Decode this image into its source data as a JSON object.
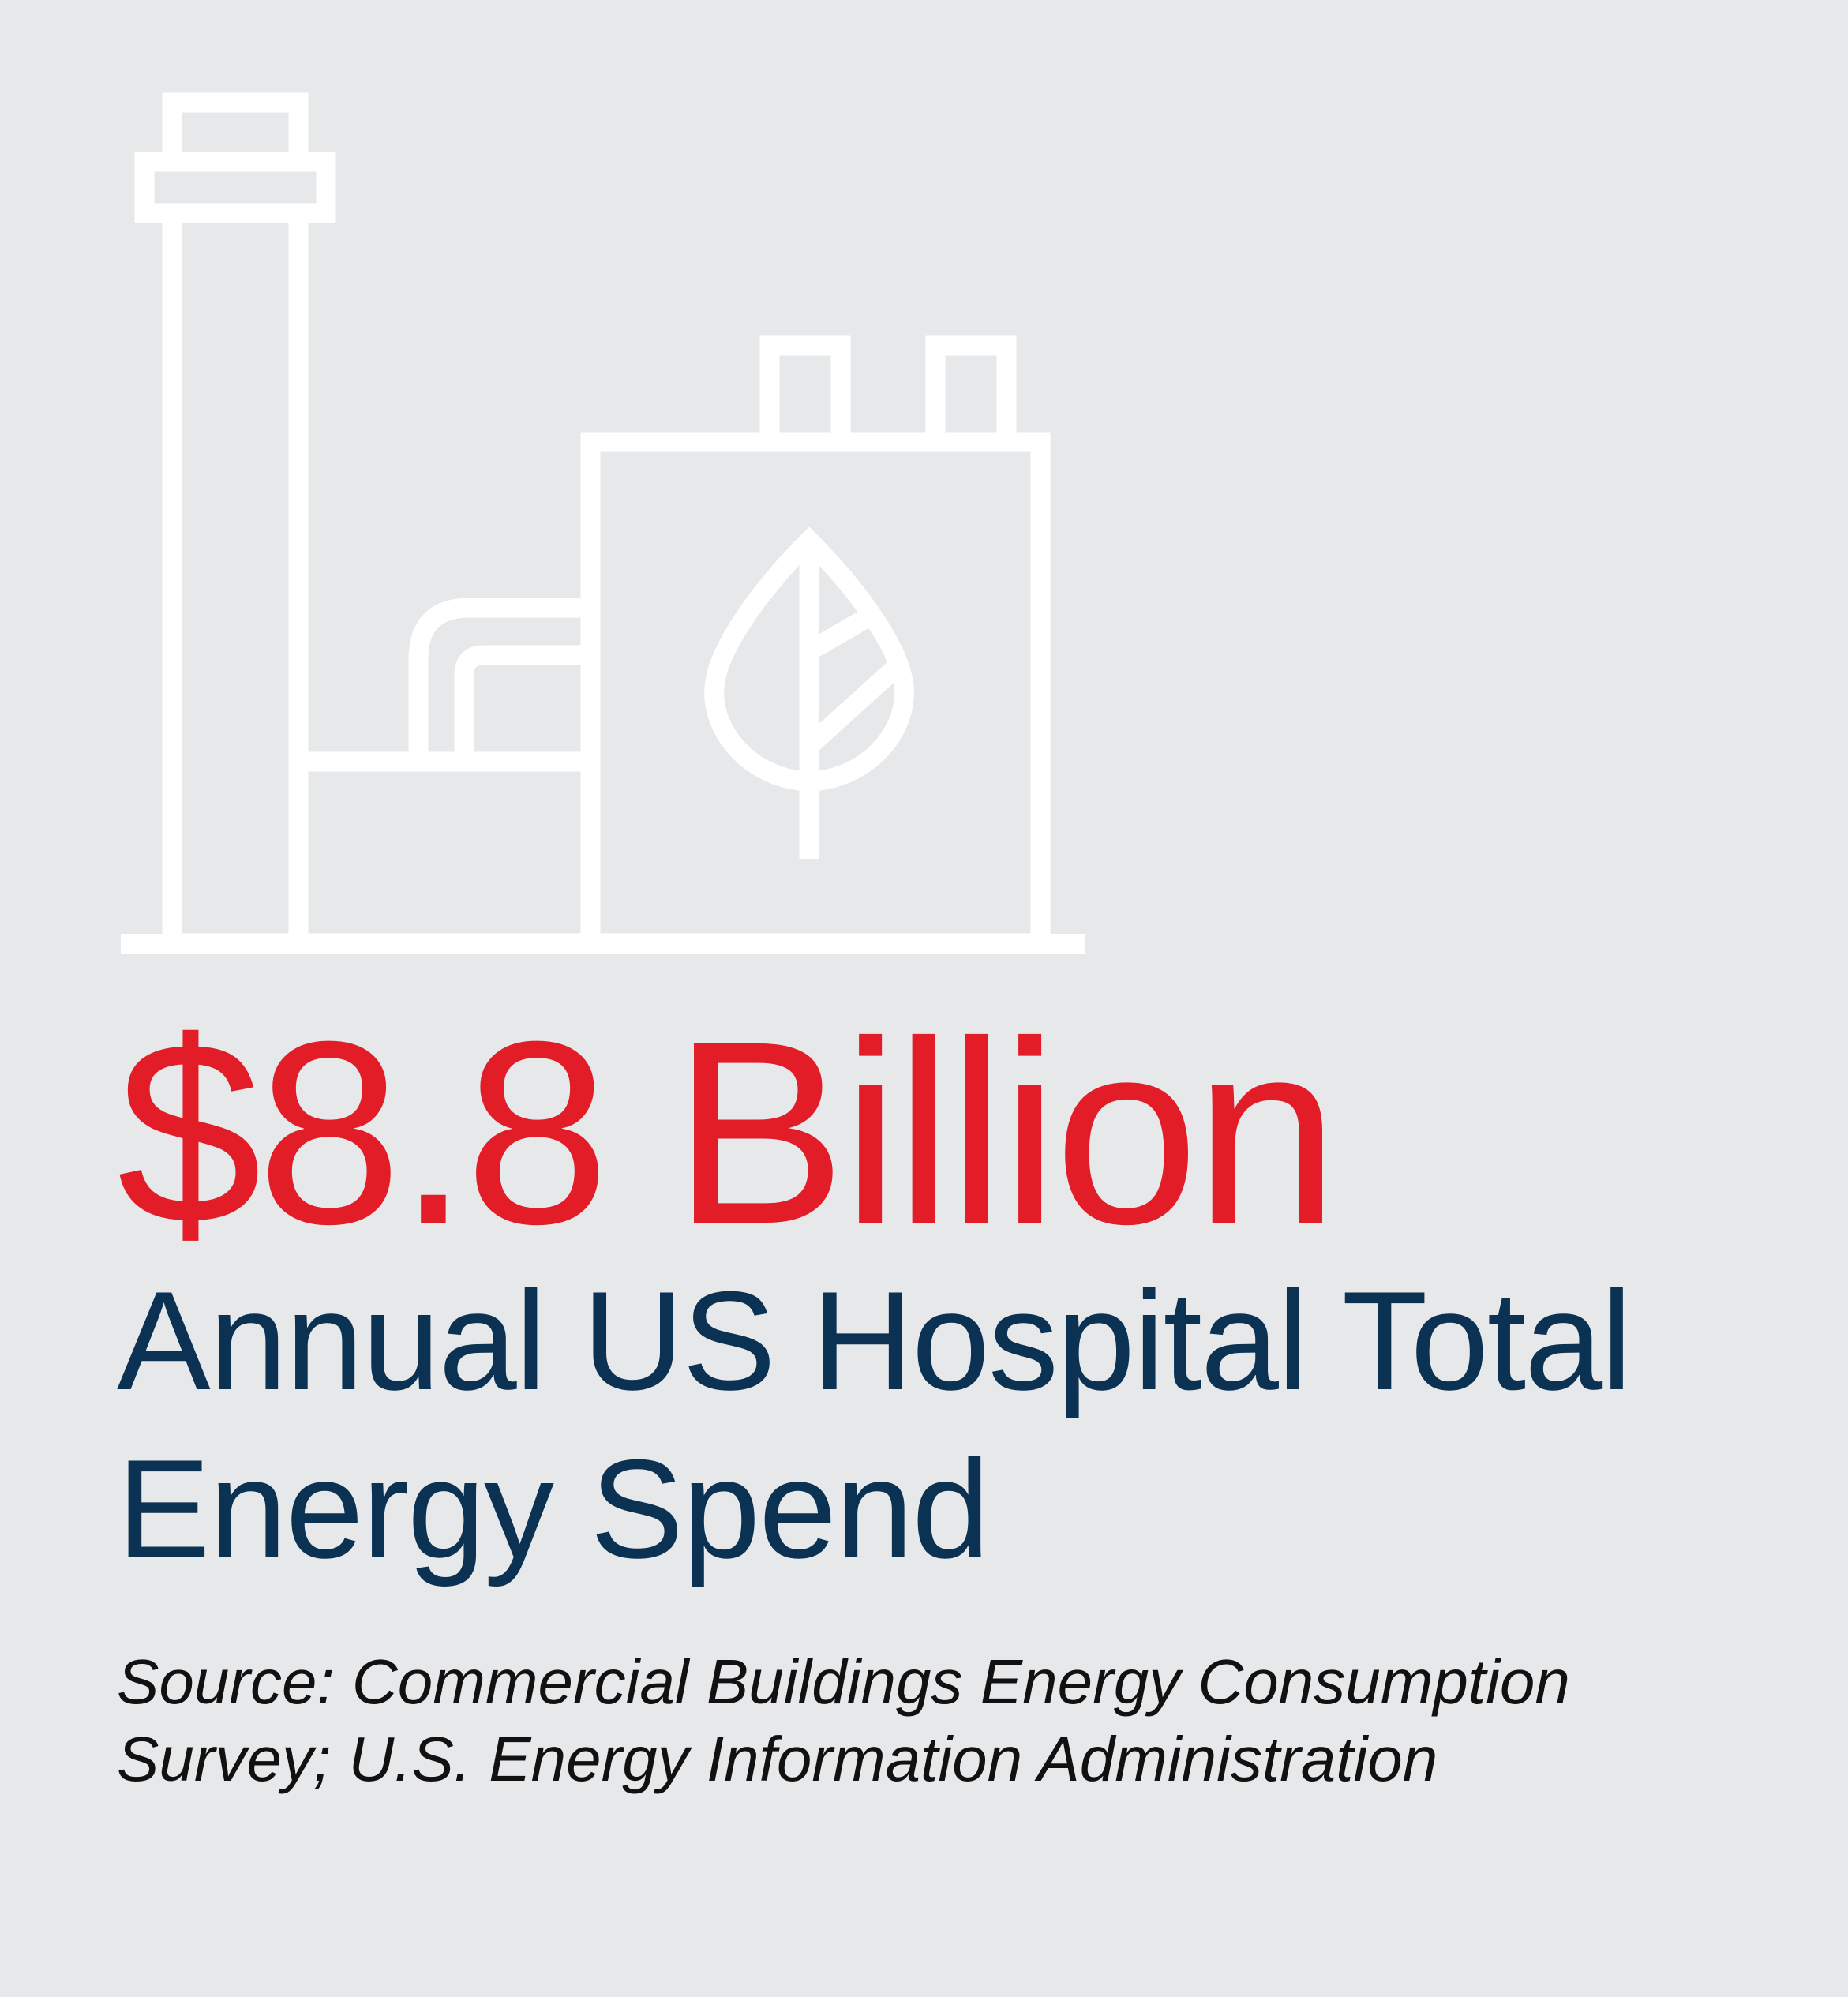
{
  "illustration": {
    "icon": "factory-leaf-icon",
    "stroke_color": "#ffffff",
    "leaf_icon": "leaf-icon"
  },
  "stat": {
    "value": "$8.8 Billion",
    "color": "#e21d27"
  },
  "label": {
    "line1": "Annual US Hospital Total",
    "line2": "Energy Spend",
    "color": "#0b3153"
  },
  "source": {
    "line1": "Source: Commercial Buildings Energy Consumption",
    "line2": "Survey; U.S. Energy Information Administration"
  },
  "colors": {
    "background": "#e7e8ea"
  }
}
